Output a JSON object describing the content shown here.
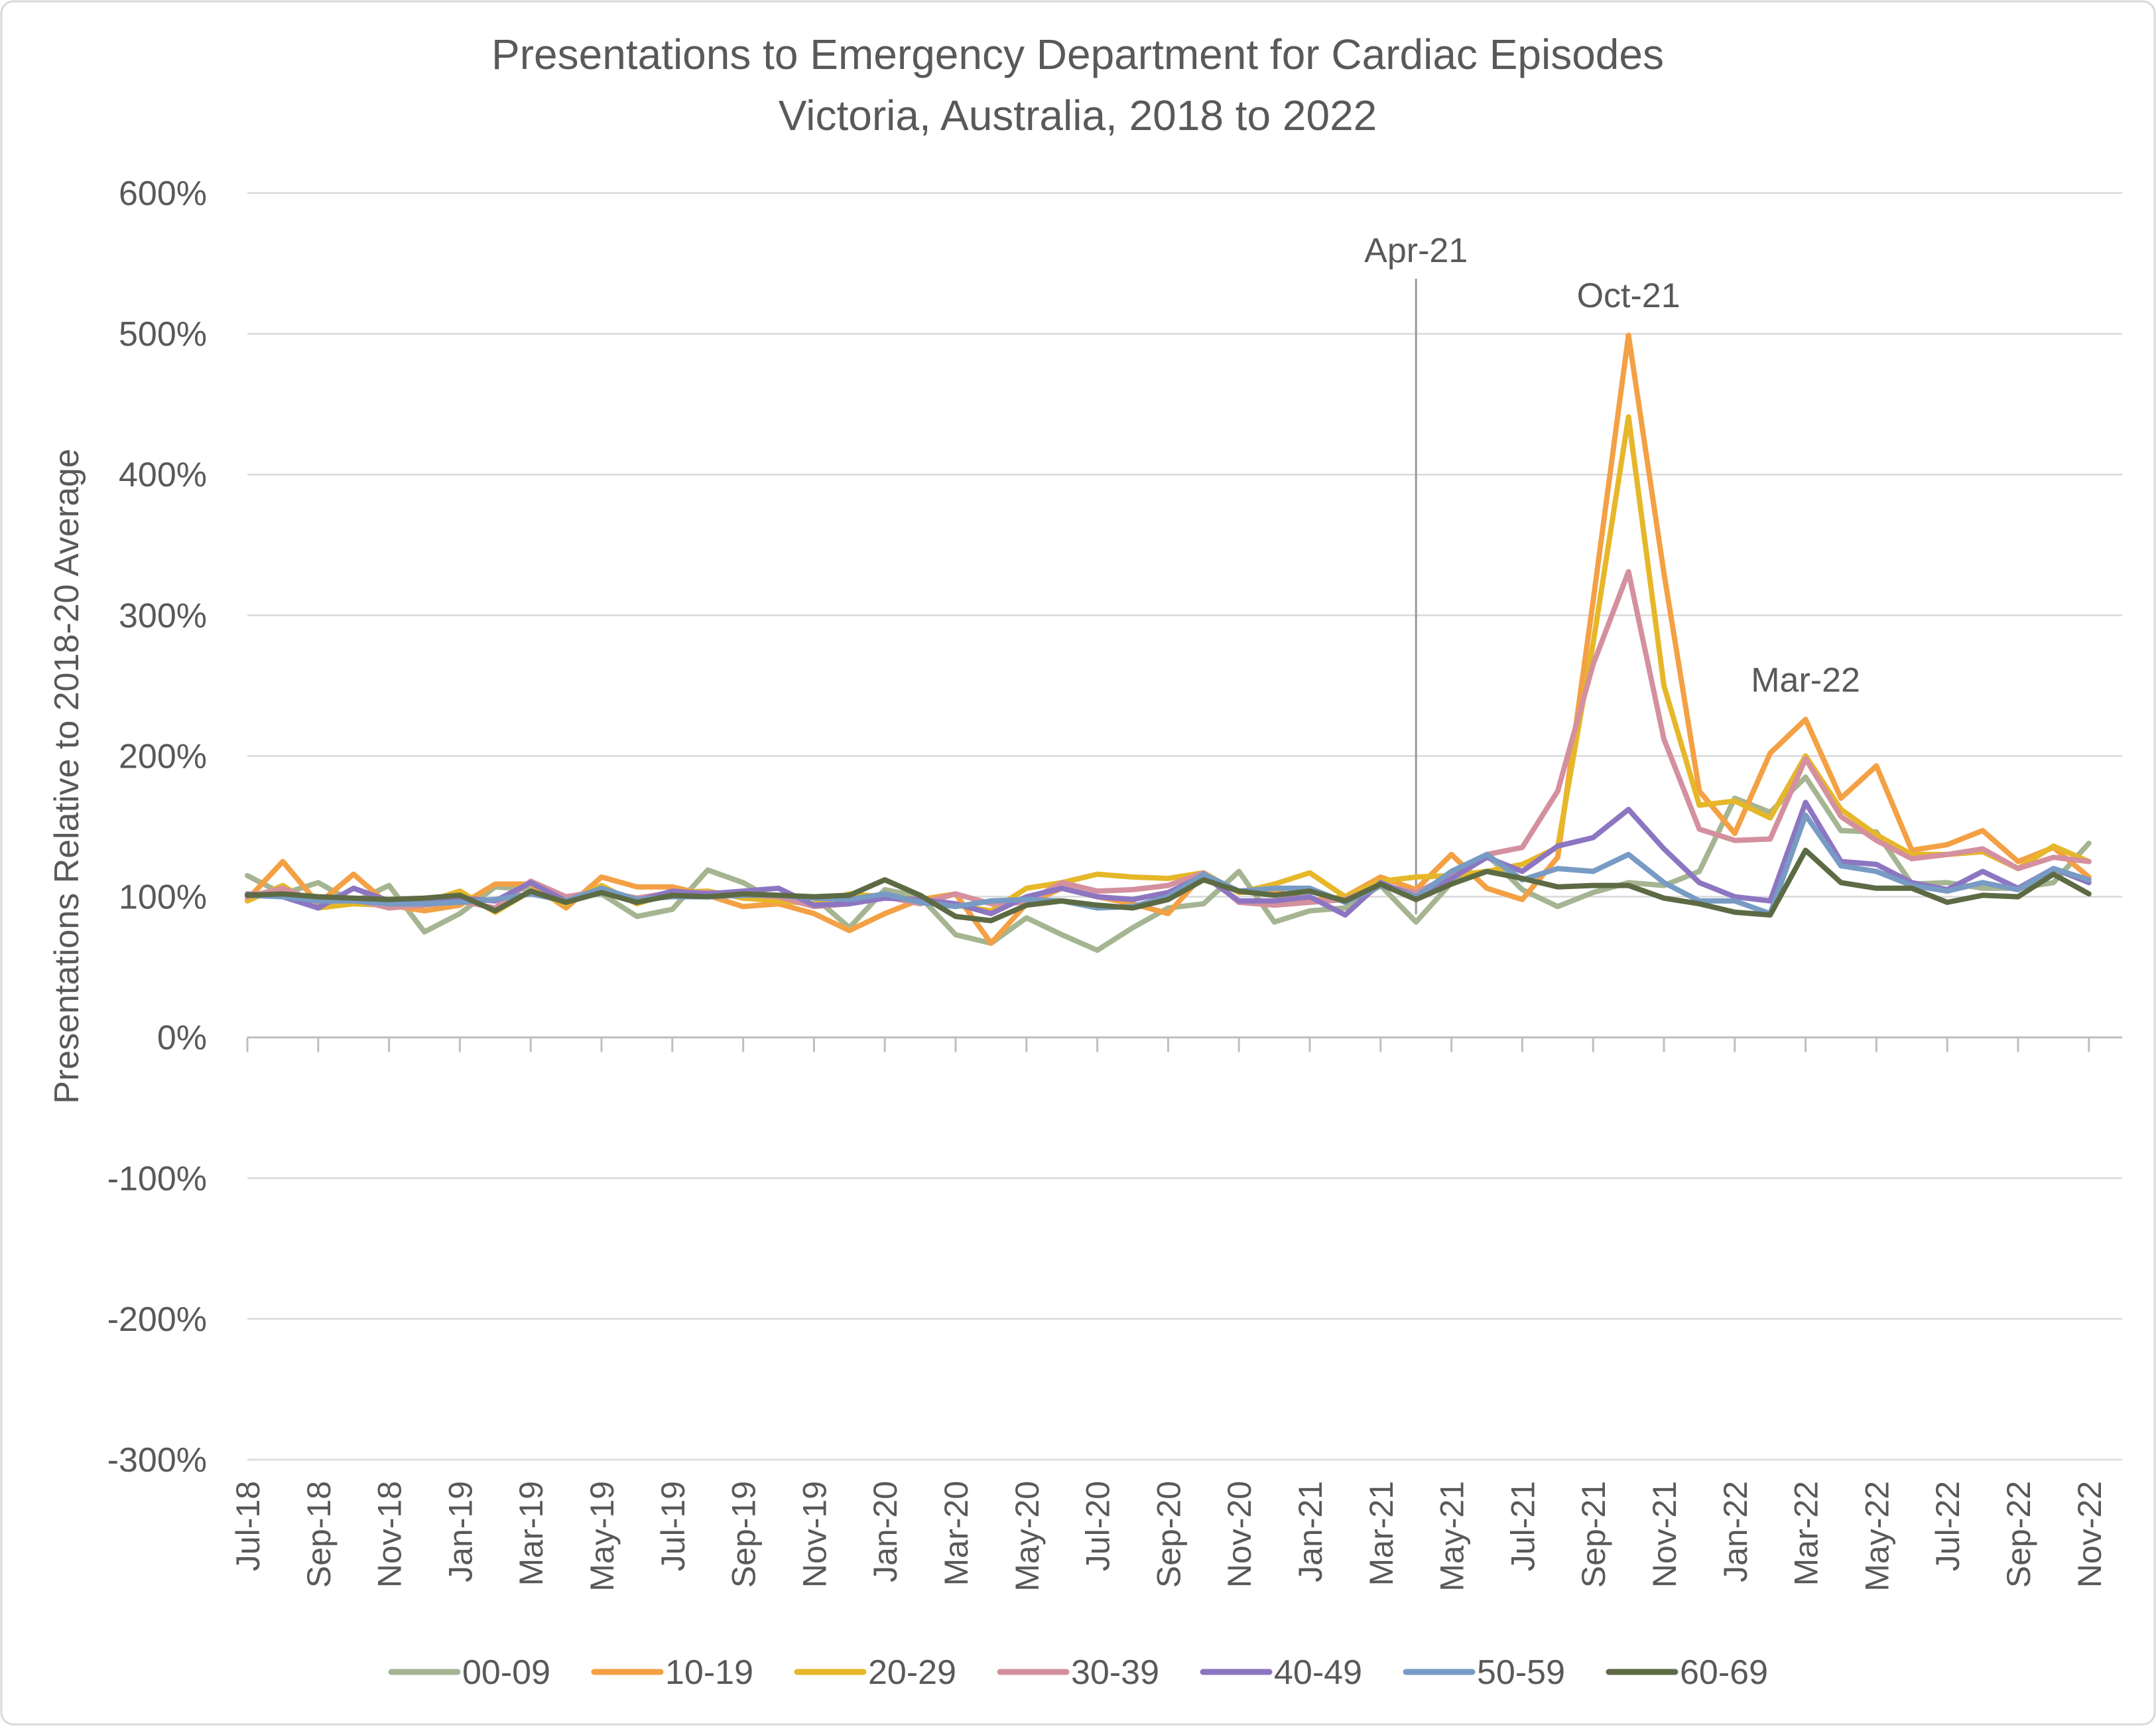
{
  "chart_data": {
    "type": "line",
    "title": "Presentations to Emergency Department for Cardiac Episodes",
    "subtitle": "Victoria, Australia, 2018 to 2022",
    "xlabel": "",
    "ylabel": "Presentations Relative to 2018-20 Average",
    "ylim": [
      -300,
      600
    ],
    "yticks": [
      600,
      500,
      400,
      300,
      200,
      100,
      0,
      -100,
      -200,
      -300
    ],
    "ytick_labels": [
      "600%",
      "500%",
      "400%",
      "300%",
      "200%",
      "100%",
      "0%",
      "-100%",
      "-200%",
      "-300%"
    ],
    "grid": true,
    "legend_position": "bottom",
    "x": [
      "Jul-18",
      "Aug-18",
      "Sep-18",
      "Oct-18",
      "Nov-18",
      "Dec-18",
      "Jan-19",
      "Feb-19",
      "Mar-19",
      "Apr-19",
      "May-19",
      "Jun-19",
      "Jul-19",
      "Aug-19",
      "Sep-19",
      "Oct-19",
      "Nov-19",
      "Dec-19",
      "Jan-20",
      "Feb-20",
      "Mar-20",
      "Apr-20",
      "May-20",
      "Jun-20",
      "Jul-20",
      "Aug-20",
      "Sep-20",
      "Oct-20",
      "Nov-20",
      "Dec-20",
      "Jan-21",
      "Feb-21",
      "Mar-21",
      "Apr-21",
      "May-21",
      "Jun-21",
      "Jul-21",
      "Aug-21",
      "Sep-21",
      "Oct-21",
      "Nov-21",
      "Dec-21",
      "Jan-22",
      "Feb-22",
      "Mar-22",
      "Apr-22",
      "May-22",
      "Jun-22",
      "Jul-22",
      "Aug-22",
      "Sep-22",
      "Oct-22",
      "Nov-22"
    ],
    "x_tick_labels": [
      "Jul-18",
      "Sep-18",
      "Nov-18",
      "Jan-19",
      "Mar-19",
      "May-19",
      "Jul-19",
      "Sep-19",
      "Nov-19",
      "Jan-20",
      "Mar-20",
      "May-20",
      "Jul-20",
      "Sep-20",
      "Nov-20",
      "Jan-21",
      "Mar-21",
      "May-21",
      "Jul-21",
      "Sep-21",
      "Nov-21",
      "Jan-22",
      "Mar-22",
      "May-22",
      "Jul-22",
      "Sep-22",
      "Nov-22"
    ],
    "series": [
      {
        "name": "00-09",
        "color": "#a5b592",
        "values": [
          115,
          102,
          110,
          96,
          108,
          75,
          88,
          107,
          105,
          100,
          102,
          86,
          91,
          119,
          110,
          96,
          100,
          78,
          105,
          100,
          73,
          67,
          85,
          73,
          62,
          78,
          92,
          95,
          118,
          82,
          90,
          92,
          108,
          82,
          110,
          130,
          105,
          93,
          103,
          110,
          108,
          118,
          170,
          160,
          185,
          147,
          146,
          109,
          110,
          106,
          106,
          110,
          138
        ]
      },
      {
        "name": "10-19",
        "color": "#f4a044",
        "values": [
          98,
          125,
          95,
          116,
          94,
          90,
          94,
          109,
          109,
          92,
          114,
          107,
          107,
          101,
          93,
          95,
          88,
          76,
          88,
          98,
          102,
          67,
          95,
          106,
          100,
          95,
          88,
          116,
          103,
          104,
          97,
          100,
          114,
          105,
          130,
          106,
          98,
          128,
          310,
          499,
          330,
          175,
          145,
          202,
          226,
          170,
          193,
          133,
          137,
          147,
          125,
          135,
          114
        ]
      },
      {
        "name": "20-29",
        "color": "#e6b729",
        "values": [
          97,
          108,
          92,
          95,
          94,
          96,
          104,
          89,
          104,
          95,
          108,
          95,
          103,
          104,
          99,
          97,
          95,
          102,
          100,
          98,
          94,
          90,
          106,
          110,
          116,
          114,
          113,
          117,
          103,
          109,
          117,
          100,
          111,
          114,
          115,
          118,
          123,
          135,
          280,
          441,
          250,
          165,
          168,
          156,
          200,
          162,
          144,
          130,
          130,
          132,
          120,
          136,
          125
        ]
      },
      {
        "name": "30-39",
        "color": "#d4909e",
        "values": [
          100,
          106,
          96,
          98,
          92,
          94,
          97,
          92,
          111,
          100,
          104,
          99,
          103,
          103,
          102,
          100,
          93,
          95,
          100,
          95,
          102,
          95,
          96,
          110,
          104,
          105,
          108,
          117,
          96,
          94,
          96,
          98,
          108,
          103,
          115,
          130,
          135,
          175,
          265,
          331,
          212,
          148,
          140,
          141,
          198,
          157,
          140,
          127,
          130,
          134,
          120,
          128,
          125
        ]
      },
      {
        "name": "40-49",
        "color": "#8d76c1",
        "values": [
          102,
          100,
          92,
          106,
          97,
          95,
          99,
          97,
          110,
          97,
          105,
          97,
          104,
          102,
          104,
          106,
          94,
          95,
          99,
          98,
          95,
          88,
          100,
          106,
          100,
          98,
          103,
          115,
          97,
          97,
          100,
          87,
          110,
          100,
          113,
          128,
          118,
          136,
          142,
          162,
          134,
          110,
          100,
          97,
          167,
          125,
          123,
          110,
          105,
          118,
          106,
          120,
          110
        ]
      },
      {
        "name": "50-59",
        "color": "#779bc4",
        "values": [
          101,
          100,
          97,
          97,
          95,
          95,
          96,
          98,
          102,
          97,
          106,
          98,
          100,
          100,
          101,
          101,
          99,
          98,
          102,
          96,
          93,
          97,
          98,
          97,
          92,
          93,
          100,
          116,
          104,
          106,
          106,
          96,
          108,
          100,
          118,
          130,
          112,
          120,
          118,
          130,
          110,
          97,
          97,
          88,
          158,
          122,
          118,
          108,
          104,
          110,
          105,
          120,
          112
        ]
      },
      {
        "name": "60-69",
        "color": "#5d6b45",
        "values": [
          101,
          102,
          100,
          99,
          98,
          99,
          101,
          90,
          104,
          96,
          103,
          96,
          101,
          100,
          102,
          101,
          100,
          101,
          112,
          101,
          86,
          83,
          94,
          97,
          94,
          92,
          98,
          112,
          104,
          101,
          104,
          97,
          109,
          98,
          109,
          118,
          113,
          107,
          108,
          108,
          99,
          95,
          89,
          87,
          133,
          110,
          106,
          106,
          96,
          101,
          100,
          116,
          102
        ]
      }
    ],
    "annotations": [
      {
        "text": "Apr-21",
        "x": "Apr-21",
        "type": "vertical-line"
      },
      {
        "text": "Oct-21",
        "x": "Oct-21"
      },
      {
        "text": "Mar-22",
        "x": "Mar-22"
      }
    ]
  }
}
